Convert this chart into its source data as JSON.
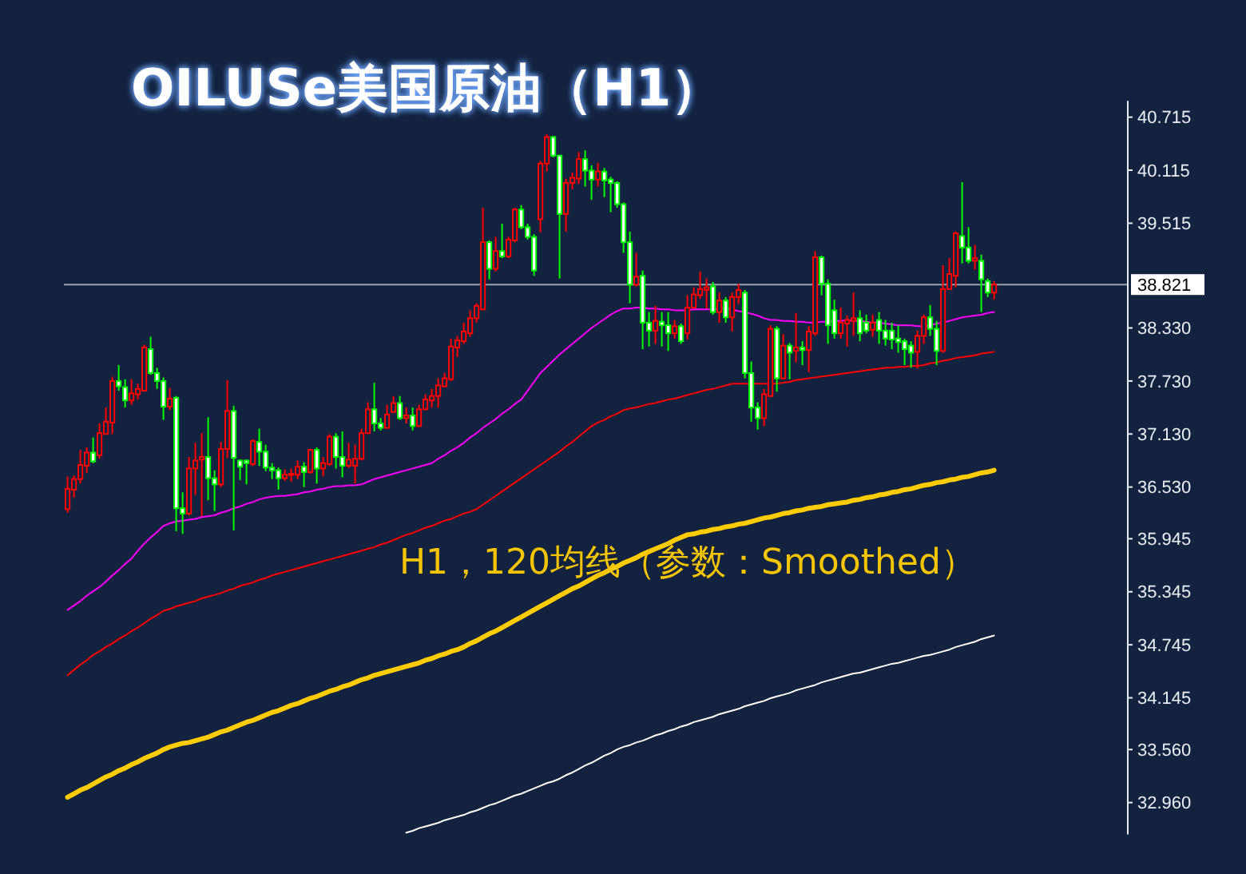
{
  "chart_data": {
    "type": "candlestick",
    "title": "OILUSe美国原油（H1）",
    "annotations": [
      "H1，120均线（参数：Smoothed）"
    ],
    "categories": [
      null,
      null,
      null,
      null,
      null,
      null,
      null,
      null,
      null,
      null,
      null,
      null,
      null,
      null,
      null,
      null,
      null,
      null,
      null,
      null,
      null,
      null,
      null,
      null,
      null,
      null,
      null,
      null,
      null,
      null,
      null,
      null,
      null,
      null,
      null,
      null,
      null,
      null,
      null,
      null,
      null,
      null,
      null,
      null,
      null,
      null,
      null,
      null,
      null,
      null,
      null,
      null,
      null,
      null,
      null,
      null,
      null,
      null,
      null,
      null,
      null,
      null,
      null,
      null,
      null,
      null,
      null,
      null,
      null,
      null,
      null,
      null,
      null,
      null,
      null,
      null,
      null,
      null,
      null,
      null,
      null,
      null,
      null,
      null,
      null,
      null,
      null,
      null,
      null,
      null,
      null,
      null,
      null,
      null,
      null,
      null,
      null,
      null,
      null,
      null,
      null,
      null,
      null,
      null,
      null,
      null,
      null,
      null,
      null,
      null,
      null,
      null,
      null,
      null,
      null,
      null,
      null,
      null,
      null,
      null,
      null,
      null,
      null,
      null,
      null,
      null,
      null,
      null,
      null,
      null,
      null,
      null,
      null,
      null,
      null,
      null,
      null,
      null,
      null,
      null,
      null,
      null,
      null,
      null,
      null,
      null
    ],
    "ohlc": [
      [
        36.28,
        36.65,
        36.24,
        36.51
      ],
      [
        36.5,
        36.66,
        36.41,
        36.62
      ],
      [
        36.62,
        36.95,
        36.57,
        36.78
      ],
      [
        36.77,
        36.98,
        36.69,
        36.92
      ],
      [
        36.92,
        37.09,
        36.8,
        36.82
      ],
      [
        36.89,
        37.25,
        36.85,
        37.14
      ],
      [
        37.13,
        37.43,
        37.13,
        37.27
      ],
      [
        37.26,
        37.78,
        37.13,
        37.73
      ],
      [
        37.73,
        37.91,
        37.62,
        37.67
      ],
      [
        37.66,
        37.75,
        37.43,
        37.51
      ],
      [
        37.51,
        37.75,
        37.46,
        37.59
      ],
      [
        37.58,
        37.7,
        37.52,
        37.64
      ],
      [
        37.62,
        38.14,
        37.61,
        38.11
      ],
      [
        38.09,
        38.23,
        37.8,
        37.82
      ],
      [
        37.82,
        37.88,
        37.64,
        37.73
      ],
      [
        37.73,
        37.77,
        37.29,
        37.44
      ],
      [
        37.44,
        37.65,
        37.4,
        37.53
      ],
      [
        37.54,
        37.56,
        36.03,
        36.29
      ],
      [
        36.29,
        36.47,
        36.0,
        36.23
      ],
      [
        36.23,
        36.87,
        36.21,
        36.74
      ],
      [
        36.74,
        37.03,
        36.44,
        36.83
      ],
      [
        36.84,
        37.14,
        36.2,
        36.87
      ],
      [
        36.87,
        37.32,
        36.38,
        36.63
      ],
      [
        36.63,
        36.72,
        36.26,
        36.56
      ],
      [
        36.56,
        37.04,
        36.53,
        36.96
      ],
      [
        36.96,
        37.74,
        36.86,
        37.39
      ],
      [
        37.39,
        37.45,
        36.04,
        36.86
      ],
      [
        36.83,
        36.84,
        36.61,
        36.76
      ],
      [
        36.83,
        36.84,
        36.56,
        36.8
      ],
      [
        36.79,
        37.07,
        36.77,
        37.05
      ],
      [
        37.04,
        37.19,
        36.77,
        36.93
      ],
      [
        36.93,
        37.01,
        36.71,
        36.75
      ],
      [
        36.75,
        36.8,
        36.62,
        36.72
      ],
      [
        36.72,
        36.75,
        36.5,
        36.63
      ],
      [
        36.63,
        36.73,
        36.6,
        36.67
      ],
      [
        36.67,
        36.74,
        36.59,
        36.68
      ],
      [
        36.67,
        36.83,
        36.62,
        36.76
      ],
      [
        36.76,
        36.81,
        36.53,
        36.7
      ],
      [
        36.7,
        36.96,
        36.68,
        36.95
      ],
      [
        36.95,
        36.98,
        36.57,
        36.74
      ],
      [
        36.74,
        36.87,
        36.65,
        36.8
      ],
      [
        36.79,
        37.13,
        36.77,
        37.1
      ],
      [
        37.1,
        37.14,
        36.74,
        36.87
      ],
      [
        36.87,
        37.16,
        36.64,
        36.77
      ],
      [
        36.77,
        37.03,
        36.75,
        36.84
      ],
      [
        36.77,
        37.01,
        36.57,
        36.85
      ],
      [
        36.85,
        37.19,
        36.83,
        37.14
      ],
      [
        37.14,
        37.49,
        37.13,
        37.41
      ],
      [
        37.41,
        37.71,
        37.16,
        37.25
      ],
      [
        37.25,
        37.31,
        37.17,
        37.2
      ],
      [
        37.2,
        37.46,
        37.19,
        37.35
      ],
      [
        37.38,
        37.56,
        37.37,
        37.48
      ],
      [
        37.48,
        37.56,
        37.29,
        37.31
      ],
      [
        37.31,
        37.43,
        37.25,
        37.34
      ],
      [
        37.34,
        37.43,
        37.17,
        37.22
      ],
      [
        37.22,
        37.46,
        37.21,
        37.41
      ],
      [
        37.41,
        37.58,
        37.4,
        37.52
      ],
      [
        37.51,
        37.64,
        37.43,
        37.56
      ],
      [
        37.56,
        37.76,
        37.43,
        37.68
      ],
      [
        37.67,
        37.82,
        37.66,
        37.76
      ],
      [
        37.75,
        38.21,
        37.73,
        38.12
      ],
      [
        38.11,
        38.24,
        38.0,
        38.19
      ],
      [
        38.18,
        38.39,
        38.15,
        38.29
      ],
      [
        38.27,
        38.53,
        38.23,
        38.44
      ],
      [
        38.44,
        38.61,
        38.39,
        38.58
      ],
      [
        38.54,
        39.69,
        38.53,
        39.3
      ],
      [
        39.3,
        39.32,
        38.88,
        39.0
      ],
      [
        39.0,
        39.36,
        38.97,
        39.2
      ],
      [
        39.2,
        39.51,
        39.12,
        39.14
      ],
      [
        39.14,
        39.36,
        39.12,
        39.33
      ],
      [
        39.32,
        39.69,
        39.3,
        39.67
      ],
      [
        39.67,
        39.72,
        39.45,
        39.47
      ],
      [
        39.47,
        39.51,
        39.33,
        39.36
      ],
      [
        39.36,
        39.39,
        38.92,
        38.98
      ],
      [
        39.56,
        40.22,
        39.41,
        40.19
      ],
      [
        40.19,
        40.52,
        40.1,
        40.49
      ],
      [
        40.49,
        40.5,
        40.26,
        40.28
      ],
      [
        40.28,
        40.29,
        38.89,
        39.62
      ],
      [
        39.62,
        40.02,
        39.42,
        39.97
      ],
      [
        39.97,
        40.09,
        39.9,
        40.03
      ],
      [
        40.02,
        40.32,
        39.96,
        40.24
      ],
      [
        40.24,
        40.34,
        39.93,
        40.11
      ],
      [
        40.11,
        40.17,
        39.78,
        40.01
      ],
      [
        40.01,
        40.2,
        39.93,
        40.1
      ],
      [
        40.1,
        40.14,
        39.81,
        40.0
      ],
      [
        40.01,
        40.04,
        39.64,
        39.97
      ],
      [
        39.97,
        39.99,
        39.69,
        39.73
      ],
      [
        39.73,
        39.75,
        39.18,
        39.3
      ],
      [
        39.3,
        39.42,
        38.61,
        38.82
      ],
      [
        38.82,
        39.18,
        38.8,
        38.91
      ],
      [
        38.92,
        38.98,
        38.09,
        38.39
      ],
      [
        38.39,
        38.51,
        38.12,
        38.3
      ],
      [
        38.3,
        38.58,
        38.15,
        38.41
      ],
      [
        38.4,
        38.51,
        38.12,
        38.36
      ],
      [
        38.36,
        38.51,
        38.07,
        38.27
      ],
      [
        38.27,
        38.42,
        38.21,
        38.35
      ],
      [
        38.35,
        38.38,
        38.15,
        38.18
      ],
      [
        38.27,
        38.7,
        38.2,
        38.56
      ],
      [
        38.56,
        38.79,
        38.55,
        38.71
      ],
      [
        38.7,
        38.97,
        38.66,
        38.77
      ],
      [
        38.76,
        38.89,
        38.55,
        38.79
      ],
      [
        38.8,
        38.85,
        38.48,
        38.51
      ],
      [
        38.51,
        38.73,
        38.39,
        38.64
      ],
      [
        38.64,
        38.68,
        38.39,
        38.45
      ],
      [
        38.45,
        38.73,
        38.29,
        38.68
      ],
      [
        38.68,
        38.83,
        38.6,
        38.76
      ],
      [
        38.73,
        38.76,
        37.76,
        37.82
      ],
      [
        37.82,
        37.95,
        37.27,
        37.43
      ],
      [
        37.43,
        37.49,
        37.18,
        37.31
      ],
      [
        37.31,
        37.64,
        37.22,
        37.58
      ],
      [
        37.56,
        38.36,
        37.55,
        38.32
      ],
      [
        38.32,
        38.35,
        37.61,
        37.76
      ],
      [
        37.76,
        38.26,
        37.75,
        38.13
      ],
      [
        38.13,
        38.16,
        37.75,
        38.05
      ],
      [
        38.07,
        38.5,
        37.94,
        38.11
      ],
      [
        38.11,
        38.18,
        37.91,
        38.08
      ],
      [
        38.08,
        38.35,
        37.83,
        38.29
      ],
      [
        38.27,
        39.2,
        38.24,
        39.13
      ],
      [
        39.13,
        39.15,
        38.7,
        38.83
      ],
      [
        38.83,
        38.88,
        38.15,
        38.36
      ],
      [
        38.53,
        38.65,
        38.21,
        38.27
      ],
      [
        38.27,
        38.56,
        38.21,
        38.39
      ],
      [
        38.38,
        38.47,
        38.12,
        38.42
      ],
      [
        38.41,
        38.73,
        38.24,
        38.44
      ],
      [
        38.44,
        38.53,
        38.18,
        38.27
      ],
      [
        38.39,
        38.48,
        38.27,
        38.3
      ],
      [
        38.31,
        38.48,
        38.23,
        38.39
      ],
      [
        38.42,
        38.51,
        38.15,
        38.3
      ],
      [
        38.3,
        38.42,
        38.13,
        38.21
      ],
      [
        38.3,
        38.39,
        38.09,
        38.2
      ],
      [
        38.21,
        38.36,
        38.05,
        38.17
      ],
      [
        38.18,
        38.21,
        37.91,
        38.09
      ],
      [
        38.13,
        38.18,
        37.88,
        38.05
      ],
      [
        38.06,
        38.3,
        37.87,
        38.24
      ],
      [
        38.24,
        38.48,
        38.15,
        38.45
      ],
      [
        38.45,
        38.59,
        38.24,
        38.32
      ],
      [
        38.32,
        38.41,
        37.91,
        38.07
      ],
      [
        38.07,
        39.04,
        38.05,
        38.77
      ],
      [
        38.77,
        39.12,
        38.76,
        38.94
      ],
      [
        38.92,
        39.42,
        38.79,
        39.4
      ],
      [
        39.37,
        39.98,
        39.06,
        39.24
      ],
      [
        39.24,
        39.47,
        39.06,
        39.09
      ],
      [
        39.09,
        39.27,
        38.99,
        39.12
      ],
      [
        39.09,
        39.16,
        38.51,
        38.88
      ],
      [
        38.86,
        38.89,
        38.68,
        38.73
      ],
      [
        38.73,
        38.86,
        38.65,
        38.82
      ]
    ],
    "colors": [
      "#ff0000",
      "#ff0000",
      "#ff0000",
      "#ff0000",
      "#00ff00",
      "#ff0000",
      "#ff0000",
      "#ff0000",
      "#00ff00",
      "#00ff00",
      "#ff0000",
      "#ff0000",
      "#ff0000",
      "#00ff00",
      "#00ff00",
      "#00ff00",
      "#ff0000",
      "#00ff00",
      "#00ff00",
      "#ff0000",
      "#ff0000",
      "#ff0000",
      "#00ff00",
      "#00ff00",
      "#ff0000",
      "#ff0000",
      "#00ff00",
      "#00ff00",
      "#00ff00",
      "#ff0000",
      "#00ff00",
      "#00ff00",
      "#00ff00",
      "#00ff00",
      "#ff0000",
      "#ff0000",
      "#ff0000",
      "#00ff00",
      "#ff0000",
      "#00ff00",
      "#ff0000",
      "#ff0000",
      "#00ff00",
      "#00ff00",
      "#ff0000",
      "#ff0000",
      "#ff0000",
      "#ff0000",
      "#00ff00",
      "#00ff00",
      "#ff0000",
      "#ff0000",
      "#00ff00",
      "#ff0000",
      "#00ff00",
      "#ff0000",
      "#ff0000",
      "#ff0000",
      "#ff0000",
      "#ff0000",
      "#ff0000",
      "#ff0000",
      "#ff0000",
      "#ff0000",
      "#ff0000",
      "#ff0000",
      "#00ff00",
      "#ff0000",
      "#00ff00",
      "#ff0000",
      "#ff0000",
      "#00ff00",
      "#00ff00",
      "#00ff00",
      "#ff0000",
      "#ff0000",
      "#00ff00",
      "#00ff00",
      "#ff0000",
      "#ff0000",
      "#ff0000",
      "#00ff00",
      "#00ff00",
      "#ff0000",
      "#00ff00",
      "#00ff00",
      "#00ff00",
      "#00ff00",
      "#00ff00",
      "#ff0000",
      "#00ff00",
      "#00ff00",
      "#ff0000",
      "#00ff00",
      "#00ff00",
      "#ff0000",
      "#00ff00",
      "#ff0000",
      "#ff0000",
      "#ff0000",
      "#ff0000",
      "#00ff00",
      "#ff0000",
      "#00ff00",
      "#ff0000",
      "#ff0000",
      "#00ff00",
      "#00ff00",
      "#00ff00",
      "#ff0000",
      "#ff0000",
      "#00ff00",
      "#ff0000",
      "#00ff00",
      "#ff0000",
      "#00ff00",
      "#ff0000",
      "#ff0000",
      "#00ff00",
      "#00ff00",
      "#00ff00",
      "#ff0000",
      "#ff0000",
      "#ff0000",
      "#00ff00",
      "#00ff00",
      "#ff0000",
      "#00ff00",
      "#00ff00",
      "#00ff00",
      "#00ff00",
      "#00ff00",
      "#00ff00",
      "#ff0000",
      "#ff0000",
      "#00ff00",
      "#00ff00",
      "#ff0000",
      "#ff0000",
      "#ff0000",
      "#00ff00",
      "#00ff00",
      "#ff0000",
      "#00ff00",
      "#00ff00",
      "#ff0000"
    ],
    "series": [
      {
        "type": "line",
        "color": "#ff00ff",
        "values": [
          35.14,
          35.19,
          35.24,
          35.3,
          35.35,
          35.4,
          35.46,
          35.53,
          35.59,
          35.66,
          35.72,
          35.81,
          35.89,
          35.96,
          36.02,
          36.09,
          36.12,
          36.14,
          36.15,
          36.16,
          36.17,
          36.19,
          36.2,
          36.21,
          36.24,
          36.26,
          36.29,
          36.31,
          36.34,
          36.36,
          36.39,
          36.41,
          36.42,
          36.43,
          36.43,
          36.44,
          36.45,
          36.47,
          36.48,
          36.5,
          36.51,
          36.53,
          36.54,
          36.54,
          36.55,
          36.55,
          36.56,
          36.59,
          36.62,
          36.64,
          36.66,
          36.68,
          36.7,
          36.72,
          36.74,
          36.76,
          36.78,
          36.8,
          36.85,
          36.89,
          36.94,
          36.98,
          37.03,
          37.09,
          37.14,
          37.2,
          37.25,
          37.3,
          37.36,
          37.41,
          37.47,
          37.52,
          37.62,
          37.72,
          37.82,
          37.89,
          37.96,
          38.03,
          38.09,
          38.15,
          38.21,
          38.27,
          38.33,
          38.38,
          38.43,
          38.48,
          38.52,
          38.55,
          38.55,
          38.56,
          38.56,
          38.55,
          38.55,
          38.54,
          38.54,
          38.53,
          38.53,
          38.53,
          38.54,
          38.54,
          38.54,
          38.54,
          38.55,
          38.55,
          38.54,
          38.52,
          38.51,
          38.49,
          38.47,
          38.44,
          38.42,
          38.42,
          38.41,
          38.41,
          38.4,
          38.4,
          38.39,
          38.39,
          38.4,
          38.4,
          38.41,
          38.41,
          38.42,
          38.41,
          38.41,
          38.4,
          38.39,
          38.39,
          38.38,
          38.37,
          38.36,
          38.36,
          38.36,
          38.35,
          38.35,
          38.36,
          38.38,
          38.39,
          38.41,
          38.43,
          38.45,
          38.46,
          38.47,
          38.48,
          38.5,
          38.51
        ]
      },
      {
        "type": "line",
        "color": "#ff0000",
        "values": [
          34.4,
          34.46,
          34.52,
          34.57,
          34.63,
          34.67,
          34.72,
          34.76,
          34.81,
          34.85,
          34.9,
          34.94,
          34.99,
          35.04,
          35.08,
          35.13,
          35.15,
          35.18,
          35.2,
          35.22,
          35.24,
          35.27,
          35.29,
          35.31,
          35.33,
          35.36,
          35.38,
          35.41,
          35.43,
          35.45,
          35.48,
          35.5,
          35.53,
          35.55,
          35.57,
          35.59,
          35.61,
          35.63,
          35.65,
          35.67,
          35.69,
          35.71,
          35.73,
          35.75,
          35.77,
          35.79,
          35.81,
          35.83,
          35.85,
          35.88,
          35.9,
          35.93,
          35.96,
          35.99,
          36.01,
          36.04,
          36.07,
          36.09,
          36.12,
          36.15,
          36.17,
          36.2,
          36.23,
          36.25,
          36.28,
          36.33,
          36.38,
          36.43,
          36.48,
          36.53,
          36.58,
          36.63,
          36.68,
          36.73,
          36.78,
          36.83,
          36.88,
          36.93,
          36.99,
          37.04,
          37.1,
          37.16,
          37.22,
          37.26,
          37.29,
          37.33,
          37.36,
          37.4,
          37.42,
          37.43,
          37.45,
          37.47,
          37.48,
          37.5,
          37.52,
          37.53,
          37.55,
          37.57,
          37.59,
          37.61,
          37.63,
          37.64,
          37.66,
          37.68,
          37.7,
          37.7,
          37.7,
          37.7,
          37.7,
          37.7,
          37.7,
          37.7,
          37.71,
          37.72,
          37.74,
          37.75,
          37.76,
          37.77,
          37.78,
          37.79,
          37.8,
          37.81,
          37.82,
          37.83,
          37.84,
          37.85,
          37.86,
          37.87,
          37.88,
          37.88,
          37.89,
          37.89,
          37.9,
          37.9,
          37.91,
          37.93,
          37.94,
          37.96,
          37.97,
          37.99,
          38.0,
          38.01,
          38.02,
          38.04,
          38.05,
          38.06
        ]
      },
      {
        "type": "line",
        "color": "#ffcc00",
        "values": [
          33.02,
          33.06,
          33.1,
          33.13,
          33.17,
          33.21,
          33.25,
          33.28,
          33.32,
          33.35,
          33.39,
          33.42,
          33.46,
          33.49,
          33.52,
          33.56,
          33.59,
          33.61,
          33.63,
          33.64,
          33.66,
          33.68,
          33.7,
          33.73,
          33.76,
          33.78,
          33.81,
          33.84,
          33.87,
          33.89,
          33.92,
          33.95,
          33.98,
          34.0,
          34.03,
          34.06,
          34.08,
          34.11,
          34.14,
          34.16,
          34.19,
          34.22,
          34.24,
          34.27,
          34.29,
          34.32,
          34.35,
          34.37,
          34.4,
          34.42,
          34.44,
          34.46,
          34.48,
          34.5,
          34.52,
          34.54,
          34.57,
          34.59,
          34.62,
          34.64,
          34.67,
          34.69,
          34.72,
          34.76,
          34.79,
          34.83,
          34.87,
          34.9,
          34.94,
          34.98,
          35.02,
          35.06,
          35.1,
          35.14,
          35.18,
          35.22,
          35.26,
          35.3,
          35.34,
          35.38,
          35.41,
          35.45,
          35.49,
          35.53,
          35.56,
          35.6,
          35.63,
          35.67,
          35.7,
          35.73,
          35.77,
          35.8,
          35.83,
          35.86,
          35.89,
          35.93,
          35.96,
          35.99,
          36.0,
          36.02,
          36.03,
          36.05,
          36.06,
          36.08,
          36.09,
          36.11,
          36.12,
          36.14,
          36.16,
          36.18,
          36.19,
          36.21,
          36.23,
          36.24,
          36.26,
          36.27,
          36.29,
          36.3,
          36.31,
          36.33,
          36.34,
          36.35,
          36.36,
          36.38,
          36.39,
          36.41,
          36.42,
          36.44,
          36.45,
          36.47,
          36.48,
          36.5,
          36.51,
          36.53,
          36.55,
          36.56,
          36.58,
          36.59,
          36.61,
          36.62,
          36.64,
          36.65,
          36.67,
          36.69,
          36.7,
          36.72
        ]
      },
      {
        "type": "line",
        "color": "#ffffff",
        "values": [
          null,
          null,
          null,
          null,
          null,
          null,
          null,
          null,
          null,
          null,
          null,
          null,
          null,
          null,
          null,
          null,
          null,
          null,
          null,
          null,
          null,
          null,
          null,
          null,
          null,
          null,
          null,
          null,
          null,
          null,
          null,
          null,
          null,
          null,
          null,
          null,
          null,
          null,
          null,
          null,
          null,
          null,
          null,
          null,
          null,
          null,
          null,
          null,
          null,
          null,
          null,
          null,
          null,
          32.62,
          32.64,
          32.67,
          32.69,
          32.71,
          32.73,
          32.76,
          32.78,
          32.8,
          32.82,
          32.85,
          32.87,
          32.9,
          32.93,
          32.95,
          32.98,
          33.01,
          33.04,
          33.06,
          33.09,
          33.12,
          33.15,
          33.18,
          33.2,
          33.23,
          33.27,
          33.3,
          33.34,
          33.38,
          33.41,
          33.45,
          33.49,
          33.52,
          33.56,
          33.59,
          33.61,
          33.64,
          33.66,
          33.69,
          33.72,
          33.74,
          33.77,
          33.79,
          33.82,
          33.84,
          33.87,
          33.89,
          33.91,
          33.93,
          33.96,
          33.98,
          34.0,
          34.02,
          34.05,
          34.07,
          34.09,
          34.11,
          34.14,
          34.16,
          34.18,
          34.2,
          34.23,
          34.25,
          34.27,
          34.29,
          34.32,
          34.34,
          34.36,
          34.38,
          34.4,
          34.42,
          34.43,
          34.45,
          34.47,
          34.49,
          34.51,
          34.53,
          34.54,
          34.56,
          34.58,
          34.6,
          34.62,
          34.63,
          34.65,
          34.67,
          34.69,
          34.72,
          34.74,
          34.76,
          34.78,
          34.81,
          34.83,
          34.85
        ]
      }
    ],
    "ylim": [
      32.6,
      40.9
    ],
    "yticks": [
      40.715,
      40.115,
      39.515,
      {
        "value": 38.33,
        "label": "38.330"
      },
      {
        "value": 37.73,
        "label": "37.730"
      },
      {
        "value": 37.13,
        "label": "37.130"
      },
      {
        "value": 36.53,
        "label": "36.530"
      },
      35.945,
      35.345,
      34.745,
      34.145,
      {
        "value": 33.56,
        "label": "33.560"
      },
      {
        "value": 32.96,
        "label": "32.960"
      }
    ],
    "ref_lines": [
      {
        "axis": "y",
        "value": 38.821,
        "label": "38.821",
        "color": "#9aa3ad"
      }
    ],
    "tick_labels": "y"
  }
}
